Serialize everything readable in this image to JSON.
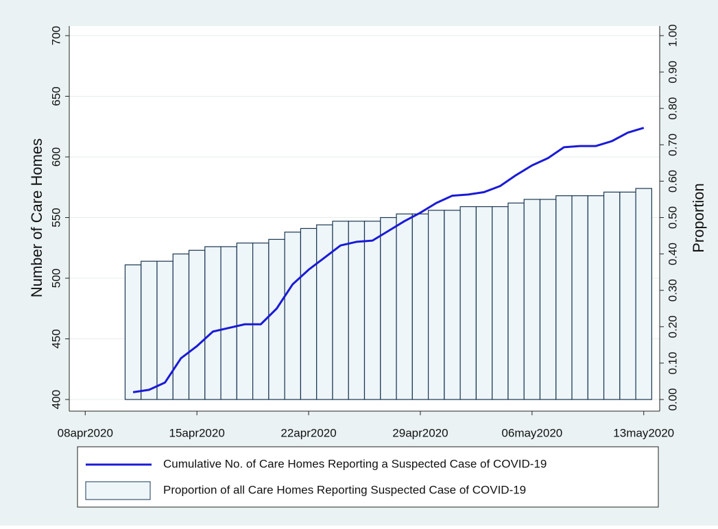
{
  "chart_data": {
    "type": "combo",
    "x": [
      "2020-04-11",
      "2020-04-12",
      "2020-04-13",
      "2020-04-14",
      "2020-04-15",
      "2020-04-16",
      "2020-04-17",
      "2020-04-18",
      "2020-04-19",
      "2020-04-20",
      "2020-04-21",
      "2020-04-22",
      "2020-04-23",
      "2020-04-24",
      "2020-04-25",
      "2020-04-26",
      "2020-04-27",
      "2020-04-28",
      "2020-04-29",
      "2020-04-30",
      "2020-05-01",
      "2020-05-02",
      "2020-05-03",
      "2020-05-04",
      "2020-05-05",
      "2020-05-06",
      "2020-05-07",
      "2020-05-08",
      "2020-05-09",
      "2020-05-10",
      "2020-05-11",
      "2020-05-12",
      "2020-05-13"
    ],
    "series": [
      {
        "name": "Proportion of all Care Homes Reporting Suspected Case of COVID-19",
        "type": "bar",
        "axis": "y2",
        "color": "#eef6fa",
        "edgecolor": "#1a3550",
        "values": [
          0.37,
          0.38,
          0.38,
          0.4,
          0.41,
          0.42,
          0.42,
          0.43,
          0.43,
          0.44,
          0.46,
          0.47,
          0.48,
          0.49,
          0.49,
          0.49,
          0.5,
          0.51,
          0.51,
          0.52,
          0.52,
          0.53,
          0.53,
          0.53,
          0.54,
          0.55,
          0.55,
          0.56,
          0.56,
          0.56,
          0.57,
          0.57,
          0.58
        ]
      },
      {
        "name": "Cumulative No. of Care Homes Reporting a Suspected Case of COVID-19",
        "type": "line",
        "axis": "y",
        "color": "#1a1ad6",
        "values": [
          406,
          408,
          414,
          434,
          444,
          456,
          459,
          462,
          462,
          475,
          495,
          507,
          517,
          527,
          530,
          531,
          539,
          547,
          554,
          562,
          568,
          569,
          571,
          576,
          585,
          593,
          599,
          608,
          609,
          609,
          613,
          620,
          624
        ]
      }
    ],
    "xlim": [
      "2020-04-07",
      "2020-05-14"
    ],
    "xticks": [
      {
        "value": "2020-04-08",
        "label": "08apr2020"
      },
      {
        "value": "2020-04-15",
        "label": "15apr2020"
      },
      {
        "value": "2020-04-22",
        "label": "22apr2020"
      },
      {
        "value": "2020-04-29",
        "label": "29apr2020"
      },
      {
        "value": "2020-05-06",
        "label": "06may2020"
      },
      {
        "value": "2020-05-13",
        "label": "13may2020"
      }
    ],
    "ylim": [
      400,
      700
    ],
    "yticks": [
      400,
      450,
      500,
      550,
      600,
      650,
      700
    ],
    "y2lim": [
      0,
      1
    ],
    "y2ticks": [
      {
        "value": 0,
        "label": "0.00"
      },
      {
        "value": 0.1,
        "label": "0.10"
      },
      {
        "value": 0.2,
        "label": "0.20"
      },
      {
        "value": 0.3,
        "label": "0.30"
      },
      {
        "value": 0.4,
        "label": "0.40"
      },
      {
        "value": 0.5,
        "label": "0.50"
      },
      {
        "value": 0.6,
        "label": "0.60"
      },
      {
        "value": 0.7,
        "label": "0.70"
      },
      {
        "value": 0.8,
        "label": "0.80"
      },
      {
        "value": 0.9,
        "label": "0.90"
      },
      {
        "value": 1,
        "label": "1.00"
      }
    ],
    "ylabel": "Number of Care Homes",
    "y2label": "Proportion",
    "grid": true
  }
}
